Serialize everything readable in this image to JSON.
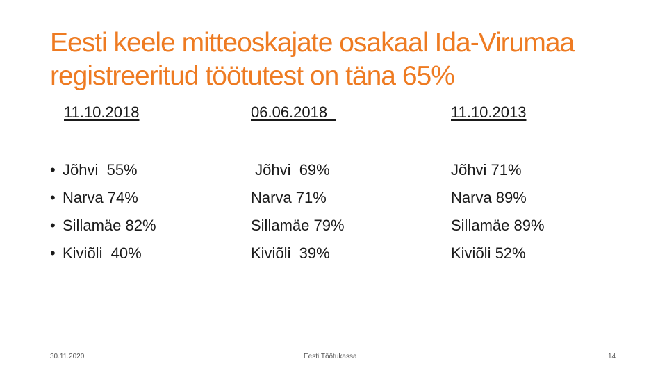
{
  "slide": {
    "title_lines": [
      "Eesti keele mitteoskajate osakaal Ida-Virumaa",
      "registreeritud töötutest on täna 65%"
    ],
    "columns": [
      {
        "date": "11.10.2018",
        "items": [
          "Jõhvi  55%",
          "Narva 74%",
          "Sillamäe 82%",
          "Kiviõli  40%"
        ]
      },
      {
        "date": "06.06.2018  ",
        "items": [
          " Jõhvi  69%",
          "Narva 71%",
          "Sillamäe 79%",
          "Kiviõli  39%"
        ]
      },
      {
        "date": "11.10.2013",
        "items": [
          "Jõhvi 71%",
          "Narva 89%",
          "Sillamäe 89%",
          "Kiviõli 52%"
        ]
      }
    ],
    "bullet_symbol": "•",
    "footer": {
      "date": "30.11.2020",
      "source": "Eesti Töötukassa",
      "page_number": "14"
    },
    "colors": {
      "title": "#ee7b22",
      "body_text": "#1a1a1a"
    }
  }
}
